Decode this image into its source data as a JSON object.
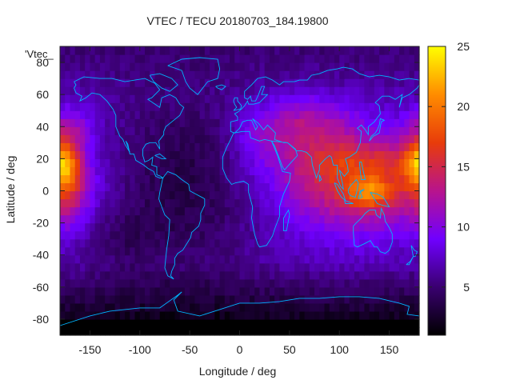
{
  "chart_data": {
    "type": "heatmap",
    "title": "VTEC / TECU 20180703_184.19800",
    "xlabel": "Longitude / deg",
    "ylabel": "Latitude / deg",
    "legend_label": "'Vtec_",
    "xlim": [
      -180,
      180
    ],
    "ylim": [
      -90,
      90
    ],
    "x_ticks": [
      -150,
      -100,
      -50,
      0,
      50,
      100,
      150
    ],
    "y_ticks": [
      -80,
      -60,
      -40,
      -20,
      0,
      20,
      40,
      60,
      80
    ],
    "x_tick_labels": [
      "-150",
      "-100",
      "-50",
      "0",
      "50",
      "100",
      "150"
    ],
    "y_tick_labels": [
      "-80",
      "-60",
      "-40",
      "-20",
      "0",
      "20",
      "40",
      "60",
      "80"
    ],
    "colorbar": {
      "min": 1,
      "max": 25,
      "ticks": [
        5,
        10,
        15,
        20,
        25
      ],
      "tick_labels": [
        "5",
        "10",
        "15",
        "20",
        "25"
      ],
      "colormap": [
        "#000000",
        "#3a0070",
        "#7000ff",
        "#b8148c",
        "#e83c0a",
        "#ff8c00",
        "#ffff00"
      ]
    },
    "grid_resolution_deg": 5,
    "features": [
      {
        "name": "dayside maximum Asia-Pacific",
        "lon": 130,
        "lat": 0,
        "peak_tecu": 25
      },
      {
        "name": "equatorial band Asia",
        "lon": 100,
        "lat": 5,
        "peak_tecu": 17
      },
      {
        "name": "eastern Pacific maximum",
        "lon": -180,
        "lat": 18,
        "peak_tecu": 20
      },
      {
        "name": "eastern Pacific band",
        "lon": -160,
        "lat": 10,
        "peak_tecu": 16
      },
      {
        "name": "Eurasia mid-latitude",
        "lon": 80,
        "lat": 40,
        "peak_tecu": 14
      },
      {
        "name": "Americas/Atlantic nightside",
        "lon": -50,
        "lat": 0,
        "peak_tecu": 4
      },
      {
        "name": "Antarctic minimum",
        "lon": 0,
        "lat": -85,
        "peak_tecu": 1
      }
    ]
  },
  "colors": {
    "coastline": "#00b4ff",
    "axis": "#222222"
  }
}
